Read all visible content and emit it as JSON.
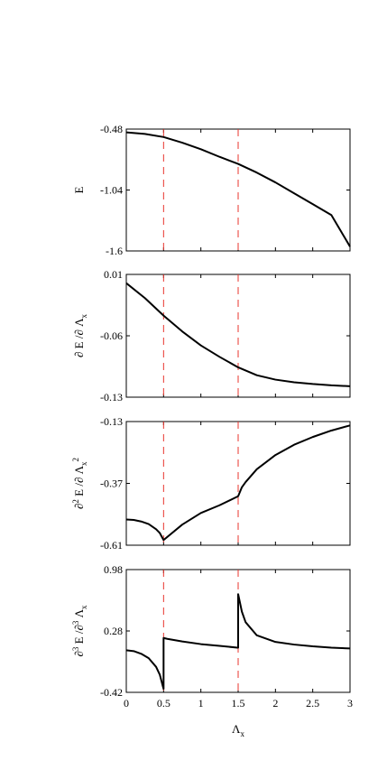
{
  "chart_data": {
    "type": "line",
    "xlabel": "Λ",
    "xlabel_sub": "x",
    "xlim": [
      0,
      3
    ],
    "x_ticks": [
      "0",
      "0.5",
      "1",
      "1.5",
      "2",
      "2.5",
      "3"
    ],
    "x_tick_values": [
      0,
      0.5,
      1,
      1.5,
      2,
      2.5,
      3
    ],
    "vertical_lines": [
      0.5,
      1.5
    ],
    "grid": false,
    "panels": [
      {
        "ylabel": "E",
        "ylim": [
          -1.6,
          -0.48
        ],
        "y_ticks": [
          "-0.48",
          "-1.04",
          "-1.6"
        ],
        "y_tick_values": [
          -0.48,
          -1.04,
          -1.6
        ],
        "x": [
          0,
          0.25,
          0.5,
          0.75,
          1.0,
          1.25,
          1.5,
          1.75,
          2.0,
          2.25,
          2.5,
          2.75,
          3.0
        ],
        "y": [
          -0.51,
          -0.525,
          -0.553,
          -0.605,
          -0.665,
          -0.735,
          -0.8,
          -0.88,
          -0.97,
          -1.07,
          -1.17,
          -1.27,
          -1.56
        ]
      },
      {
        "ylabel": "∂ E /∂ Λx",
        "ylim": [
          -0.13,
          0.01
        ],
        "y_ticks": [
          "0.01",
          "-0.06",
          "-0.13"
        ],
        "y_tick_values": [
          0.01,
          -0.06,
          -0.13
        ],
        "x": [
          0,
          0.25,
          0.5,
          0.75,
          1.0,
          1.25,
          1.5,
          1.75,
          2.0,
          2.25,
          2.5,
          2.75,
          3.0
        ],
        "y": [
          0.0,
          -0.017,
          -0.037,
          -0.055,
          -0.071,
          -0.084,
          -0.096,
          -0.105,
          -0.11,
          -0.113,
          -0.115,
          -0.1165,
          -0.1175
        ]
      },
      {
        "ylabel": "∂2 E /∂ Λx2",
        "ylim": [
          -0.61,
          -0.13
        ],
        "y_ticks": [
          "-0.13",
          "-0.37",
          "-0.61"
        ],
        "y_tick_values": [
          -0.13,
          -0.37,
          -0.61
        ],
        "x": [
          0,
          0.1,
          0.2,
          0.3,
          0.4,
          0.45,
          0.5,
          0.75,
          1.0,
          1.25,
          1.5,
          1.55,
          1.6,
          1.75,
          2.0,
          2.25,
          2.5,
          2.75,
          3.0
        ],
        "y": [
          -0.51,
          -0.512,
          -0.518,
          -0.528,
          -0.548,
          -0.563,
          -0.59,
          -0.53,
          -0.485,
          -0.455,
          -0.42,
          -0.385,
          -0.365,
          -0.315,
          -0.26,
          -0.22,
          -0.19,
          -0.165,
          -0.145
        ]
      },
      {
        "ylabel": "∂3 E /∂3 Λx",
        "ylim": [
          -0.42,
          0.98
        ],
        "y_ticks": [
          "0.98",
          "0.28",
          "-0.42"
        ],
        "y_tick_values": [
          0.98,
          0.28,
          -0.42
        ],
        "x": [
          0,
          0.1,
          0.2,
          0.3,
          0.4,
          0.45,
          0.49,
          0.5,
          0.5,
          0.55,
          0.75,
          1.0,
          1.25,
          1.49,
          1.5,
          1.5,
          1.52,
          1.55,
          1.6,
          1.75,
          2.0,
          2.25,
          2.5,
          2.75,
          3.0
        ],
        "y": [
          0.06,
          0.05,
          0.02,
          -0.03,
          -0.13,
          -0.22,
          -0.35,
          -0.38,
          0.2,
          0.19,
          0.16,
          0.13,
          0.11,
          0.09,
          0.09,
          0.7,
          0.62,
          0.5,
          0.38,
          0.23,
          0.155,
          0.125,
          0.105,
          0.09,
          0.08
        ]
      }
    ]
  }
}
